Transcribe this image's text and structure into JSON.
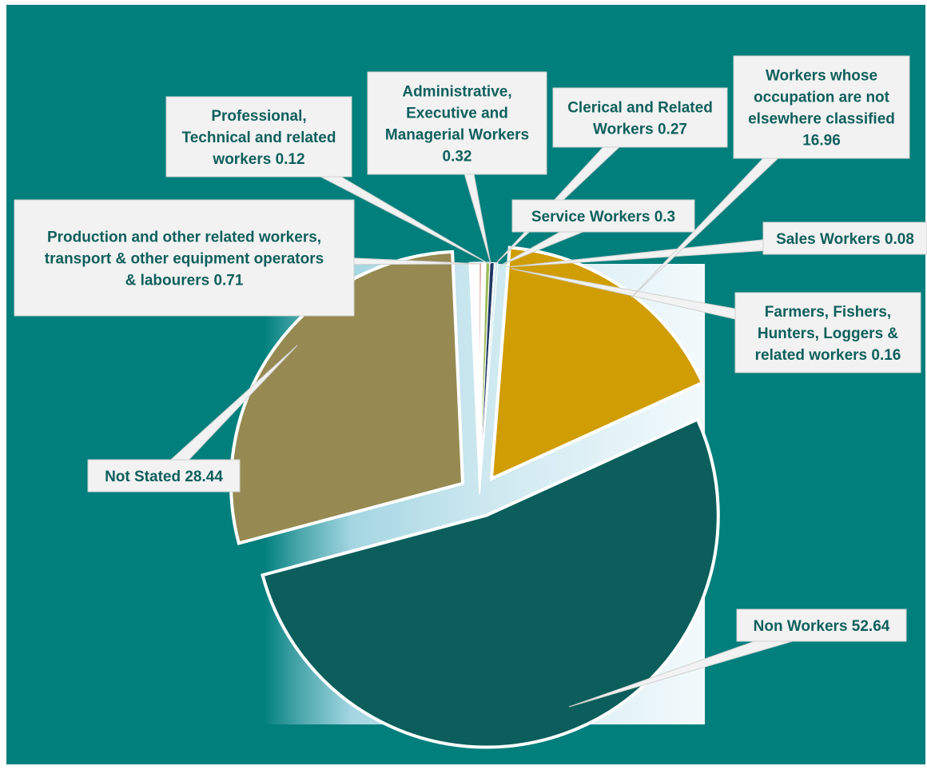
{
  "chart_data": {
    "type": "pie",
    "title": "",
    "slices": [
      {
        "label": "Professional, Technical and related workers",
        "value": 0.12,
        "color": "#c0504d",
        "label_lines": [
          "Professional,",
          "Technical and related",
          "workers 0.12"
        ]
      },
      {
        "label": "Administrative, Executive and Managerial Workers",
        "value": 0.32,
        "color": "#ffffff",
        "label_lines": [
          "Administrative,",
          "Executive and",
          "Managerial Workers",
          "0.32"
        ]
      },
      {
        "label": "Clerical and Related Workers",
        "value": 0.27,
        "color": "#9bbb59",
        "label_lines": [
          "Clerical and Related",
          "Workers 0.27"
        ]
      },
      {
        "label": "Service Workers",
        "value": 0.3,
        "color": "#1f3864",
        "label_lines": [
          "Service Workers 0.3"
        ]
      },
      {
        "label": "Sales Workers",
        "value": 0.08,
        "color": "#4bacc6",
        "label_lines": [
          "Sales Workers 0.08"
        ]
      },
      {
        "label": "Farmers, Fishers, Hunters, Loggers & related workers",
        "value": 0.16,
        "color": "#c8e4ee",
        "label_lines": [
          "Farmers, Fishers,",
          "Hunters, Loggers &",
          "related workers 0.16"
        ]
      },
      {
        "label": "Workers whose occupation are not elsewhere classified",
        "value": 16.96,
        "color": "#d09d05",
        "label_lines": [
          "Workers whose",
          "occupation are not",
          "elsewhere classified",
          "16.96"
        ]
      },
      {
        "label": "Non Workers",
        "value": 52.64,
        "color": "#0b5e5b",
        "label_lines": [
          "Non Workers 52.64"
        ]
      },
      {
        "label": "Not Stated",
        "value": 28.44,
        "color": "#968a52",
        "label_lines": [
          "Not Stated 28.44"
        ]
      },
      {
        "label": "Production and other related workers, transport & other equipment operators & labourers",
        "value": 0.71,
        "color": "#ffffff",
        "label_lines": [
          "Production and other related workers,",
          "transport & other equipment operators",
          "& labourers  0.71"
        ]
      }
    ],
    "legend": "none",
    "data_labels": "callouts"
  },
  "colors": {
    "background": "#007f7c",
    "plot_panel": "#e7f3f8",
    "callout_fill": "#f2f2f2",
    "callout_text": "#0f5f5c",
    "slice_border": "#ffffff"
  }
}
